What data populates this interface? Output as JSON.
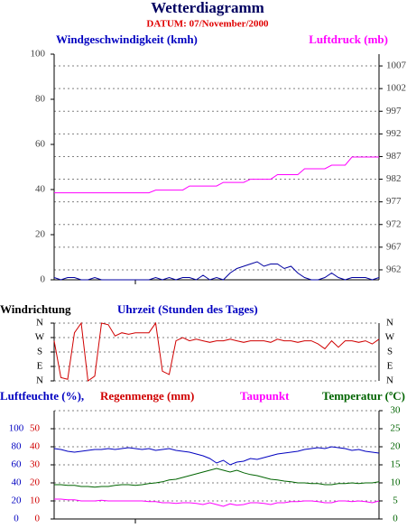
{
  "chart_data": [
    {
      "type": "line",
      "title": "Wetterdiagramm",
      "subtitle": "DATUM: 07/November/2000",
      "x": [
        0,
        0.5,
        1,
        1.5,
        2,
        2.5,
        3,
        3.5,
        4,
        4.5,
        5,
        5.5,
        6,
        6.5,
        7,
        7.5,
        8,
        8.5,
        9,
        9.5,
        10,
        10.5,
        11,
        11.5,
        12,
        12.5,
        13,
        13.5,
        14,
        14.5,
        15,
        15.5,
        16,
        16.5,
        17,
        17.5,
        18,
        18.5,
        19,
        19.5,
        20,
        20.5,
        21,
        21.5,
        22,
        22.5,
        23,
        23.5,
        24
      ],
      "xlim": [
        0,
        24
      ],
      "xticks": [
        6
      ],
      "ylim": [
        0,
        100
      ],
      "yticks": [
        0,
        20,
        40,
        60,
        80,
        100
      ],
      "y2lim": [
        959.8,
        1009.6
      ],
      "y2ticks": [
        962,
        967,
        972,
        977,
        982,
        987,
        992,
        997,
        1002,
        1007
      ],
      "grid": true,
      "series": [
        {
          "name": "Windgeschwindigkeit (kmh)",
          "color": "#0000a0",
          "axis": "y",
          "values": [
            1,
            0,
            1,
            1,
            0,
            0,
            1,
            0,
            0,
            0,
            0,
            0,
            0,
            0,
            0,
            1,
            0,
            1,
            0,
            1,
            1,
            0,
            2,
            0,
            1,
            0,
            3,
            5,
            6,
            7,
            8,
            6,
            7,
            7,
            5,
            6,
            3,
            1,
            0,
            0,
            1,
            3,
            1,
            0,
            1,
            1,
            1,
            0,
            1
          ]
        },
        {
          "name": "Luftdruck (mb)",
          "color": "#ff00ff",
          "axis": "y2",
          "values": [
            979.0,
            979.0,
            979.0,
            979.0,
            979.0,
            979.0,
            979.0,
            979.0,
            979.0,
            979.0,
            979.0,
            979.0,
            979.0,
            979.0,
            979.0,
            979.6,
            979.6,
            979.6,
            979.6,
            979.6,
            980.5,
            980.5,
            980.5,
            980.5,
            980.5,
            981.3,
            981.3,
            981.3,
            981.3,
            982.0,
            982.0,
            982.0,
            982.0,
            983.0,
            983.0,
            983.0,
            983.0,
            984.3,
            984.3,
            984.3,
            984.3,
            985.1,
            985.1,
            985.1,
            986.9,
            986.9,
            986.9,
            986.9,
            986.9
          ]
        }
      ]
    },
    {
      "type": "line",
      "xlabel": "Uhrzeit (Stunden des Tages)",
      "x": [
        0,
        0.5,
        1,
        1.5,
        2,
        2.5,
        3,
        3.5,
        4,
        4.5,
        5,
        5.5,
        6,
        6.5,
        7,
        7.5,
        8,
        8.5,
        9,
        9.5,
        10,
        10.5,
        11,
        11.5,
        12,
        12.5,
        13,
        13.5,
        14,
        14.5,
        15,
        15.5,
        16,
        16.5,
        17,
        17.5,
        18,
        18.5,
        19,
        19.5,
        20,
        20.5,
        21,
        21.5,
        22,
        22.5,
        23,
        23.5,
        24
      ],
      "xlim": [
        0,
        24
      ],
      "ylim": [
        0,
        360
      ],
      "yticks": [
        {
          "value": 0,
          "label": "N"
        },
        {
          "value": 90,
          "label": "E"
        },
        {
          "value": 180,
          "label": "S"
        },
        {
          "value": 270,
          "label": "W"
        },
        {
          "value": 360,
          "label": "N"
        }
      ],
      "grid": true,
      "series": [
        {
          "name": "Windrichtung",
          "color": "#d00000",
          "axis": "y",
          "values": [
            250,
            20,
            10,
            300,
            360,
            0,
            30,
            360,
            350,
            280,
            300,
            290,
            300,
            300,
            300,
            360,
            60,
            40,
            250,
            270,
            250,
            260,
            250,
            240,
            250,
            250,
            260,
            250,
            240,
            250,
            250,
            250,
            240,
            260,
            250,
            250,
            240,
            250,
            250,
            230,
            200,
            250,
            210,
            250,
            250,
            240,
            250,
            230,
            260
          ]
        }
      ]
    },
    {
      "type": "line",
      "x": [
        0,
        0.5,
        1,
        1.5,
        2,
        2.5,
        3,
        3.5,
        4,
        4.5,
        5,
        5.5,
        6,
        6.5,
        7,
        7.5,
        8,
        8.5,
        9,
        9.5,
        10,
        10.5,
        11,
        11.5,
        12,
        12.5,
        13,
        13.5,
        14,
        14.5,
        15,
        15.5,
        16,
        16.5,
        17,
        17.5,
        18,
        18.5,
        19,
        19.5,
        20,
        20.5,
        21,
        21.5,
        22,
        22.5,
        23,
        23.5,
        24
      ],
      "xlim": [
        0,
        24
      ],
      "xticks": [
        6
      ],
      "ylim": [
        0,
        120
      ],
      "yticks": [
        0,
        20,
        40,
        60,
        80,
        100
      ],
      "y3label": "Regenmenge (mm)",
      "y3lim": [
        0,
        60
      ],
      "y3ticks": [
        0,
        10,
        20,
        30,
        40,
        50
      ],
      "y2lim": [
        0,
        30
      ],
      "y2ticks": [
        0,
        5,
        10,
        15,
        20,
        25,
        30
      ],
      "grid": true,
      "series": [
        {
          "name": "Luftfeuchte (%),",
          "color": "#0000c0",
          "axis": "y",
          "values": [
            78,
            77,
            75,
            74,
            75,
            76,
            77,
            77,
            78,
            77,
            78,
            79,
            78,
            77,
            78,
            76,
            77,
            78,
            76,
            75,
            74,
            72,
            70,
            67,
            62,
            65,
            60,
            63,
            64,
            67,
            66,
            68,
            70,
            72,
            73,
            74,
            75,
            77,
            78,
            79,
            78,
            80,
            79,
            78,
            76,
            77,
            75,
            74,
            73
          ]
        },
        {
          "name": "Taupunkt",
          "color": "#ff00ff",
          "axis": "y2",
          "values": [
            5.5,
            5.5,
            5.3,
            5.3,
            5.0,
            5.0,
            5.0,
            5.2,
            5.0,
            5.0,
            5.0,
            5.0,
            5.0,
            5.0,
            4.8,
            4.8,
            4.5,
            4.5,
            4.3,
            4.5,
            4.5,
            4.3,
            4.0,
            4.5,
            4.0,
            3.5,
            4.2,
            3.8,
            4.0,
            4.5,
            4.5,
            4.3,
            4.0,
            4.5,
            4.5,
            4.8,
            4.8,
            5.0,
            5.0,
            4.8,
            4.5,
            4.5,
            5.0,
            5.0,
            4.8,
            5.0,
            4.8,
            4.5,
            5.0
          ]
        },
        {
          "name": "Temperatur (ºC)",
          "color": "#006400",
          "axis": "y2",
          "values": [
            9.5,
            9.5,
            9.3,
            9.3,
            9.0,
            9.0,
            8.8,
            9.0,
            9.0,
            9.3,
            9.5,
            9.5,
            9.3,
            9.5,
            9.8,
            10.0,
            10.3,
            10.8,
            11.0,
            11.5,
            12.0,
            12.5,
            13.0,
            13.5,
            14.0,
            13.5,
            13.0,
            13.5,
            12.8,
            12.3,
            12.0,
            11.5,
            11.0,
            10.8,
            10.5,
            10.3,
            10.0,
            10.0,
            9.8,
            9.8,
            9.5,
            9.5,
            9.8,
            9.8,
            10.0,
            9.8,
            10.0,
            10.0,
            10.3
          ]
        }
      ]
    }
  ]
}
